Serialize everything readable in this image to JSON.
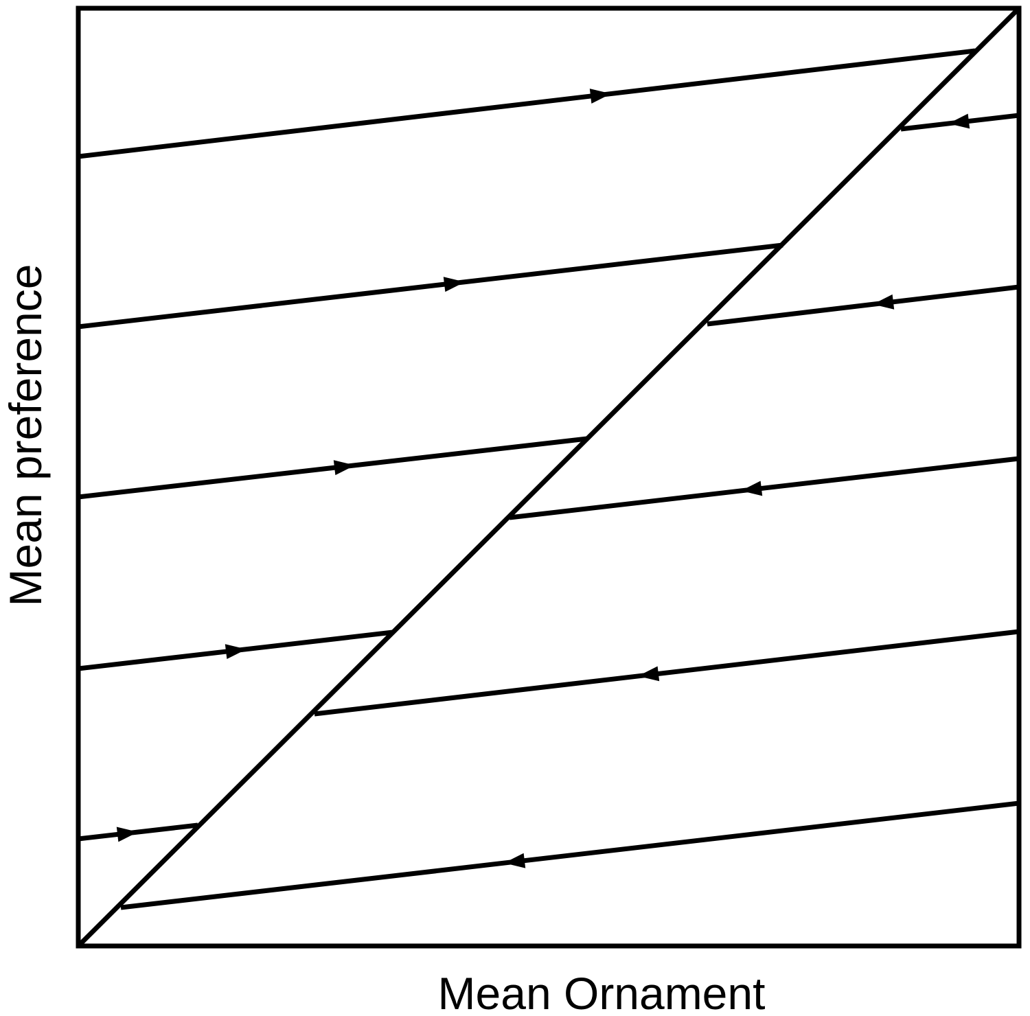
{
  "diagram": {
    "xlabel": "Mean Ornament",
    "ylabel": "Mean preference",
    "stroke_color": "#000000",
    "background_color": "#ffffff",
    "equilibrium_line": "diagonal from bottom-left to top-right corner",
    "trajectories": [
      {
        "side": "above equilibrium line",
        "direction": "right"
      },
      {
        "side": "above equilibrium line",
        "direction": "right"
      },
      {
        "side": "above equilibrium line",
        "direction": "right"
      },
      {
        "side": "above equilibrium line",
        "direction": "right"
      },
      {
        "side": "above equilibrium line",
        "direction": "right"
      },
      {
        "side": "below equilibrium line",
        "direction": "left"
      },
      {
        "side": "below equilibrium line",
        "direction": "left"
      },
      {
        "side": "below equilibrium line",
        "direction": "left"
      },
      {
        "side": "below equilibrium line",
        "direction": "left"
      },
      {
        "side": "below equilibrium line",
        "direction": "left"
      }
    ]
  }
}
